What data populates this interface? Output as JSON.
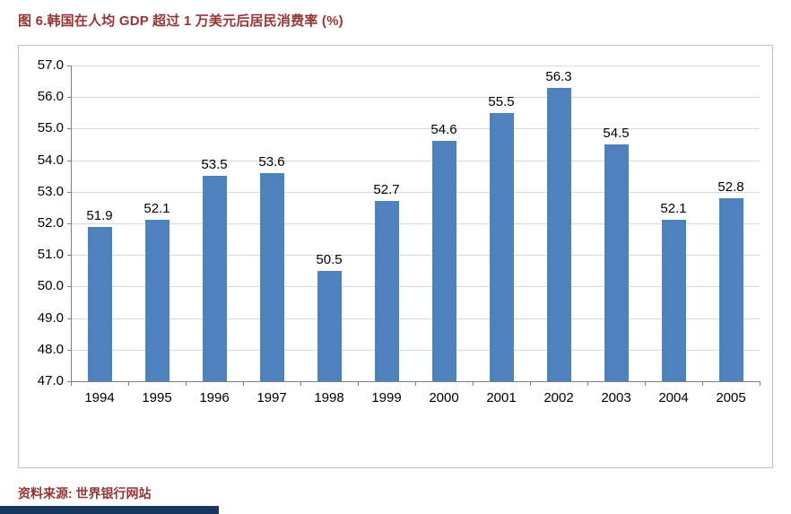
{
  "title": "图 6.韩国在人均 GDP 超过 1 万美元后居民消费率 (%)",
  "source": "资料来源: 世界银行网站",
  "colors": {
    "title_text": "#943634",
    "bar": "#4f81bd",
    "grid": "#d9d9d9",
    "axis": "#808080",
    "frame_border": "#bfbfbf",
    "footer_bar": "#17375e"
  },
  "chart_data": {
    "type": "bar",
    "title": "图 6.韩国在人均 GDP 超过 1 万美元后居民消费率 (%)",
    "categories": [
      "1994",
      "1995",
      "1996",
      "1997",
      "1998",
      "1999",
      "2000",
      "2001",
      "2002",
      "2003",
      "2004",
      "2005"
    ],
    "values": [
      51.9,
      52.1,
      53.5,
      53.6,
      50.5,
      52.7,
      54.6,
      55.5,
      56.3,
      54.5,
      52.1,
      52.8
    ],
    "xlabel": "",
    "ylabel": "",
    "ylim": [
      47.0,
      57.0
    ],
    "ytick_step": 1.0,
    "ytick_format_decimals": 1,
    "data_labels": true,
    "grid": true,
    "legend": false,
    "bar_color": "#4f81bd"
  }
}
